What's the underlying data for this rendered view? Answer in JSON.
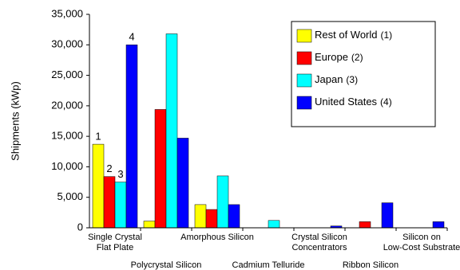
{
  "chart_data": {
    "type": "bar",
    "y_label": "Shipments (kWp)",
    "categories": [
      [
        "Single Crystal",
        "Flat Plate"
      ],
      [
        "Polycrystal Silicon"
      ],
      [
        "Amorphous Silicon"
      ],
      [
        "Cadmium Telluride"
      ],
      [
        "Crystal Silicon",
        "Concentrators"
      ],
      [
        "Ribbon Silicon"
      ],
      [
        "Silicon on",
        "Low-Cost Substrate"
      ]
    ],
    "series": [
      {
        "name": "Rest of World",
        "note": "(1)",
        "color": "#ffff00",
        "values": [
          13700,
          1100,
          3800,
          0,
          0,
          0,
          0
        ]
      },
      {
        "name": "Europe",
        "note": "(2)",
        "color": "#ff0000",
        "values": [
          8400,
          19400,
          3000,
          0,
          0,
          1000,
          0
        ]
      },
      {
        "name": "Japan",
        "note": "(3)",
        "color": "#00ffff",
        "values": [
          7500,
          31800,
          8500,
          1200,
          0,
          0,
          0
        ]
      },
      {
        "name": "United States",
        "note": "(4)",
        "color": "#0000ff",
        "values": [
          30000,
          14700,
          3800,
          0,
          300,
          4100,
          1000
        ]
      }
    ],
    "bar_labels": [
      "1",
      "2",
      "3",
      "4"
    ],
    "ylim": [
      0,
      35000
    ],
    "yticks": [
      0,
      {
        "value": 5000,
        "label": "5,000"
      },
      {
        "value": 10000,
        "label": "10,000"
      },
      {
        "value": 15000,
        "label": "15,000"
      },
      {
        "value": 20000,
        "label": "20,000"
      },
      {
        "value": 25000,
        "label": "25,000"
      },
      {
        "value": 30000,
        "label": "30,000"
      },
      {
        "value": 35000,
        "label": "35,000"
      }
    ],
    "grid": false,
    "legend": "upper-right"
  }
}
